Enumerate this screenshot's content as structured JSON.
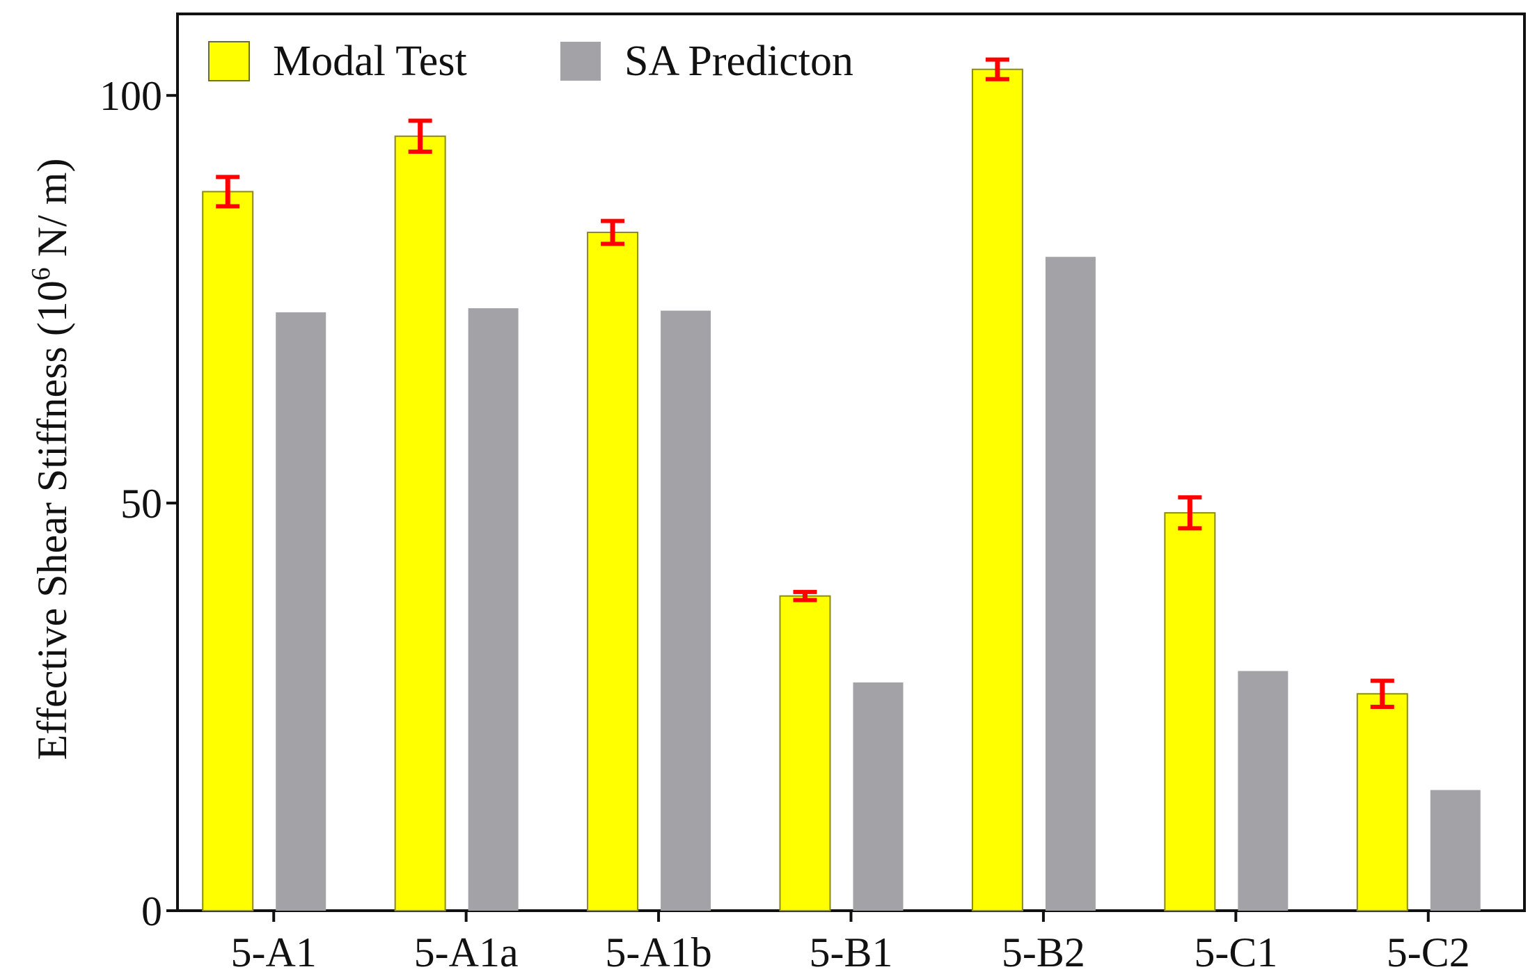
{
  "chart_data": {
    "type": "bar",
    "title": "",
    "xlabel": "",
    "ylabel": {
      "prefix": "Effective Shear Stiffness (10",
      "superscript": "6",
      "suffix": " N/ m)"
    },
    "ylim": [
      0,
      110
    ],
    "yticks": [
      0,
      50,
      100
    ],
    "ytick_labels": [
      "0",
      "50",
      "100"
    ],
    "grid": false,
    "legend_position": "top-left",
    "categories": [
      "5-A1",
      "5-A1a",
      "5-A1b",
      "5-B1",
      "5-B2",
      "5-C1",
      "5-C2"
    ],
    "series": [
      {
        "name": "Modal Test",
        "color": "#ffff00",
        "edge_color": "#8a8a1a",
        "values": [
          88.2,
          95.0,
          83.2,
          38.6,
          103.2,
          48.8,
          26.6
        ],
        "error": [
          1.8,
          1.9,
          1.4,
          0.5,
          1.2,
          1.9,
          1.6
        ],
        "error_color": "#ff0000"
      },
      {
        "name": "SA Predicton",
        "color": "#a3a2a7",
        "values": [
          73.4,
          73.9,
          73.6,
          28.0,
          80.2,
          29.4,
          14.8
        ]
      }
    ]
  }
}
